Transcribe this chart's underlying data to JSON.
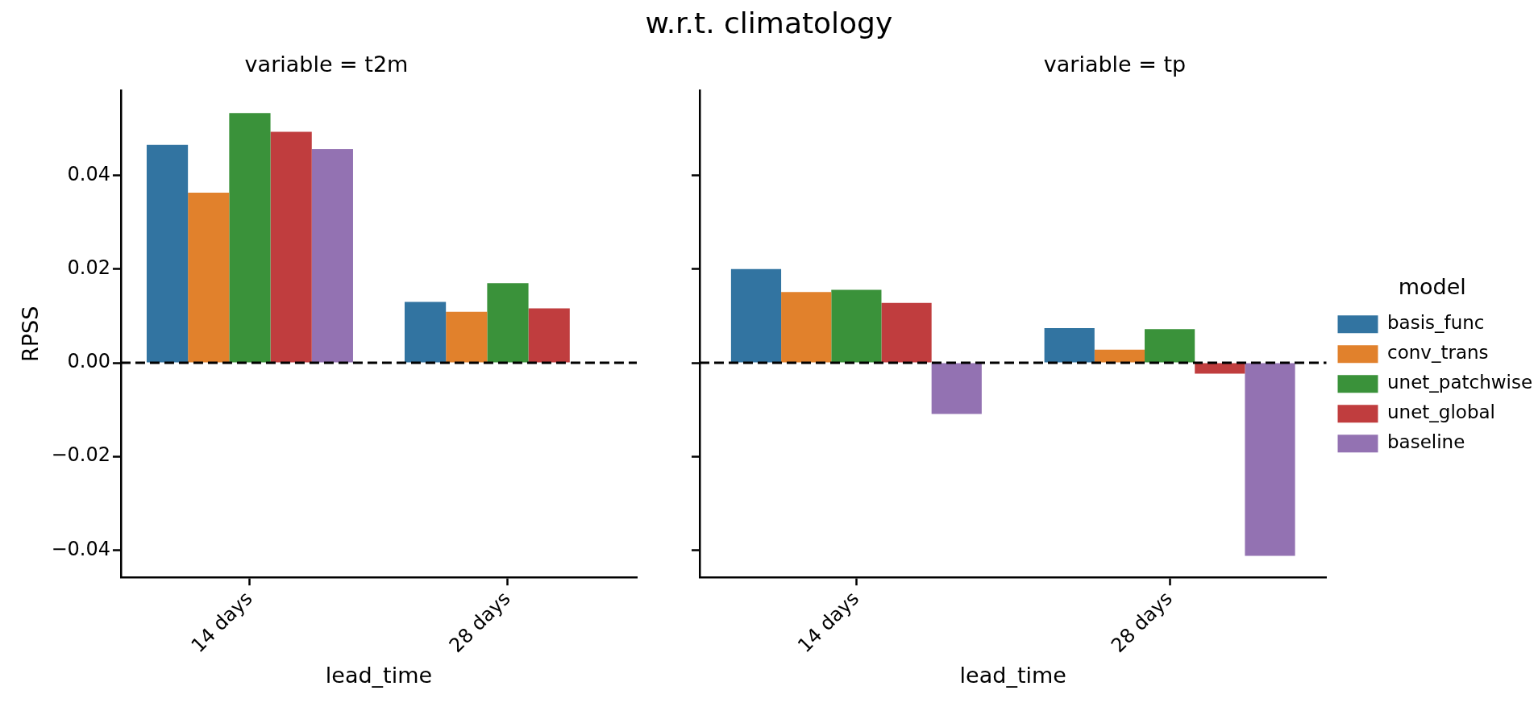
{
  "chart_data": [
    {
      "type": "bar",
      "subtitle": "variable = t2m",
      "xlabel": "lead_time",
      "ylabel": "RPSS",
      "categories": [
        "14 days",
        "28 days"
      ],
      "series": [
        {
          "color": "#3274a1",
          "values": [
            0.0465,
            0.013
          ]
        },
        {
          "color": "#e1812c",
          "values": [
            0.0363,
            0.0109
          ]
        },
        {
          "color": "#3a923a",
          "values": [
            0.0533,
            0.017
          ]
        },
        {
          "color": "#c03d3e",
          "values": [
            0.0493,
            0.0116
          ]
        },
        {
          "color": "#9372b2",
          "values": [
            0.0456,
            null
          ]
        }
      ],
      "ylim": [
        -0.0458,
        0.0581
      ],
      "yticks": [
        {
          "value": -0.04,
          "label": "−0.04"
        },
        {
          "value": -0.02,
          "label": "−0.02"
        },
        {
          "value": 0,
          "label": "0.00"
        },
        {
          "value": 0.02,
          "label": "0.02"
        },
        {
          "value": 0.04,
          "label": "0.04"
        }
      ],
      "ref_lines": [
        {
          "axis": "y",
          "value": 0,
          "color": "#000000",
          "line_style": "dashed"
        }
      ],
      "grid": false,
      "legend": false
    },
    {
      "type": "bar",
      "title": "w.r.t. climatology",
      "subtitle": "variable = tp",
      "xlabel": "lead_time",
      "legend_title": "model",
      "categories": [
        "14 days",
        "28 days"
      ],
      "series": [
        {
          "name": "basis_func",
          "color": "#3274a1",
          "values": [
            0.02,
            0.0074
          ]
        },
        {
          "name": "conv_trans",
          "color": "#e1812c",
          "values": [
            0.0151,
            0.0028
          ]
        },
        {
          "name": "unet_patchwise",
          "color": "#3a923a",
          "values": [
            0.0156,
            0.0072
          ]
        },
        {
          "name": "unet_global",
          "color": "#c03d3e",
          "values": [
            0.0128,
            -0.0023
          ]
        },
        {
          "name": "baseline",
          "color": "#9372b2",
          "values": [
            -0.0109,
            -0.0412
          ]
        }
      ],
      "ylim": [
        -0.0458,
        0.0581
      ],
      "yticks": [
        {
          "value": -0.04,
          "label": null
        },
        {
          "value": -0.02,
          "label": null
        },
        {
          "value": 0,
          "label": null
        },
        {
          "value": 0.02,
          "label": null
        },
        {
          "value": 0.04,
          "label": null
        }
      ],
      "ref_lines": [
        {
          "axis": "y",
          "value": 0,
          "color": "#000000",
          "line_style": "dashed"
        }
      ],
      "grid": false,
      "legend": "right",
      "tick_labels": "x"
    }
  ]
}
